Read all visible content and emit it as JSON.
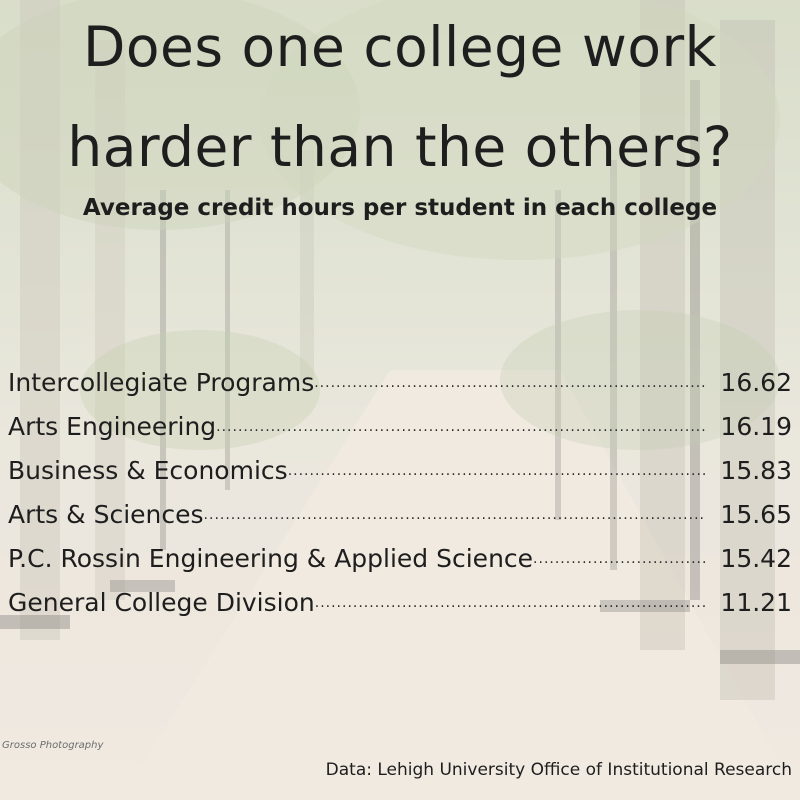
{
  "chart_data": {
    "type": "table",
    "title_line1": "Does one college work",
    "title_line2": "harder than the others?",
    "subtitle": "Average credit hours per student in each college",
    "rows": [
      {
        "label": "Intercollegiate Programs",
        "value": "16.62"
      },
      {
        "label": "Arts Engineering",
        "value": "16.19"
      },
      {
        "label": "Business & Economics",
        "value": "15.83"
      },
      {
        "label": "Arts & Sciences",
        "value": "15.65"
      },
      {
        "label": "P.C. Rossin Engineering & Applied Science",
        "value": "15.42"
      },
      {
        "label": "General College Division",
        "value": "11.21"
      }
    ],
    "source": "Data: Lehigh University Office of Institutional Research"
  },
  "photo_credit": "Grosso Photography",
  "colors": {
    "text": "#1e1e1e",
    "foliage": "#c9d3b8",
    "path": "#e9e2d8"
  }
}
